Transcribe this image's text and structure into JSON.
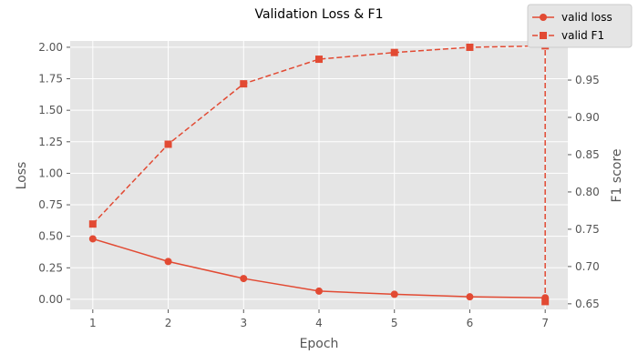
{
  "chart_data": {
    "type": "line",
    "title": "Validation Loss & F1",
    "xlabel": "Epoch",
    "ylabel_left": "Loss",
    "ylabel_right": "F1 score",
    "x": [
      1,
      2,
      3,
      4,
      5,
      6,
      7
    ],
    "xticks": [
      "1",
      "2",
      "3",
      "4",
      "5",
      "6",
      "7"
    ],
    "yticks_left": [
      "0.00",
      "0.25",
      "0.50",
      "0.75",
      "1.00",
      "1.25",
      "1.50",
      "1.75",
      "2.00"
    ],
    "yticks_right": [
      "0.65",
      "0.70",
      "0.75",
      "0.80",
      "0.85",
      "0.90",
      "0.95",
      "1.00"
    ],
    "ylim_left": [
      -0.08,
      2.05
    ],
    "ylim_right": [
      0.6425,
      1.0025
    ],
    "grid": true,
    "legend_position": "top-right",
    "series": [
      {
        "name": "valid loss",
        "axis": "left",
        "style": "solid",
        "marker": "circle",
        "color": "#E24A33",
        "values": [
          0.48,
          0.3,
          0.165,
          0.065,
          0.04,
          0.02,
          0.012
        ]
      },
      {
        "name": "valid F1",
        "axis": "right",
        "style": "dashed",
        "marker": "square",
        "color": "#E24A33",
        "values": [
          0.757,
          0.864,
          0.945,
          0.978,
          0.987,
          0.994,
          0.996
        ],
        "note_final_drop_to": 0.653
      }
    ],
    "colors": {
      "plot_background": "#E5E5E5",
      "grid": "#FFFFFF",
      "tick_text": "#555555",
      "line": "#E24A33"
    }
  }
}
